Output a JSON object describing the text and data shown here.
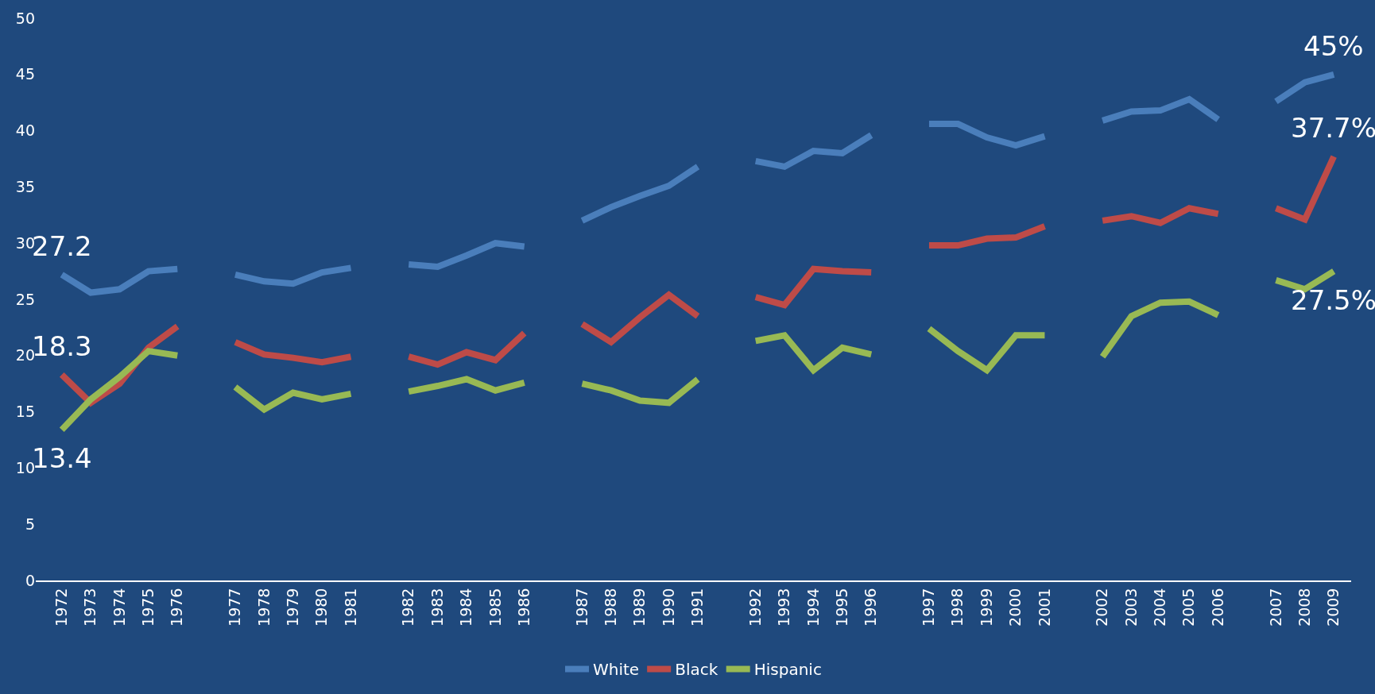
{
  "chart_data": {
    "type": "line",
    "categories": [
      "1972",
      "1973",
      "1974",
      "1975",
      "1976",
      null,
      "1977",
      "1978",
      "1979",
      "1980",
      "1981",
      null,
      "1982",
      "1983",
      "1984",
      "1985",
      "1986",
      null,
      "1987",
      "1988",
      "1989",
      "1990",
      "1991",
      null,
      "1992",
      "1993",
      "1994",
      "1995",
      "1996",
      null,
      "1997",
      "1998",
      "1999",
      "2000",
      "2001",
      null,
      "2002",
      "2003",
      "2004",
      "2005",
      "2006",
      null,
      "2007",
      "2008",
      "2009"
    ],
    "series": [
      {
        "name": "White",
        "color": "#4a7ebb",
        "values": [
          27.2,
          25.6,
          25.9,
          27.5,
          27.7,
          null,
          27.2,
          26.6,
          26.4,
          27.4,
          27.8,
          null,
          28.1,
          27.9,
          28.9,
          30.0,
          29.7,
          null,
          32.0,
          33.2,
          34.2,
          35.1,
          36.8,
          null,
          37.3,
          36.8,
          38.2,
          38.0,
          39.6,
          null,
          40.6,
          40.6,
          39.4,
          38.7,
          39.5,
          null,
          40.9,
          41.7,
          41.8,
          42.8,
          41.0,
          null,
          42.6,
          44.3,
          45
        ]
      },
      {
        "name": "Black",
        "color": "#be4b48",
        "values": [
          18.3,
          15.8,
          17.5,
          20.7,
          22.6,
          null,
          21.2,
          20.1,
          19.8,
          19.4,
          19.9,
          null,
          19.9,
          19.2,
          20.3,
          19.6,
          22.0,
          null,
          22.8,
          21.2,
          23.4,
          25.4,
          23.5,
          null,
          25.2,
          24.5,
          27.7,
          27.5,
          27.4,
          null,
          29.8,
          29.8,
          30.4,
          30.5,
          31.5,
          null,
          32.0,
          32.4,
          31.8,
          33.1,
          32.6,
          null,
          33.1,
          32.1,
          37.7
        ]
      },
      {
        "name": "Hispanic",
        "color": "#98b954",
        "values": [
          13.4,
          16.1,
          18.1,
          20.4,
          20.0,
          null,
          17.2,
          15.2,
          16.7,
          16.1,
          16.6,
          null,
          16.8,
          17.3,
          17.9,
          16.9,
          17.6,
          null,
          17.5,
          16.9,
          16.0,
          15.8,
          17.9,
          null,
          21.3,
          21.8,
          18.7,
          20.7,
          20.1,
          null,
          22.4,
          20.4,
          18.7,
          21.8,
          21.8,
          null,
          19.9,
          23.5,
          24.7,
          24.8,
          23.6,
          null,
          26.7,
          25.9,
          27.5
        ]
      }
    ],
    "ylim": [
      0,
      50
    ],
    "yticks": [
      0,
      5,
      10,
      15,
      20,
      25,
      30,
      35,
      40,
      45,
      50
    ],
    "grid": false,
    "legend": "bottom",
    "marker": "none",
    "line_style": "solid",
    "annotations": [
      {
        "text": "27.2",
        "x": "1972",
        "y": 27.2
      },
      {
        "text": "18.3",
        "x": "1972",
        "y": 18.3
      },
      {
        "text": "13.4",
        "x": "1972",
        "y": 13.4
      },
      {
        "text": "45%",
        "x": "2009",
        "y": 45
      },
      {
        "text": "37.7%",
        "x": "2009",
        "y": 37.7
      },
      {
        "text": "27.5%",
        "x": "2009",
        "y": 27.5
      }
    ]
  }
}
